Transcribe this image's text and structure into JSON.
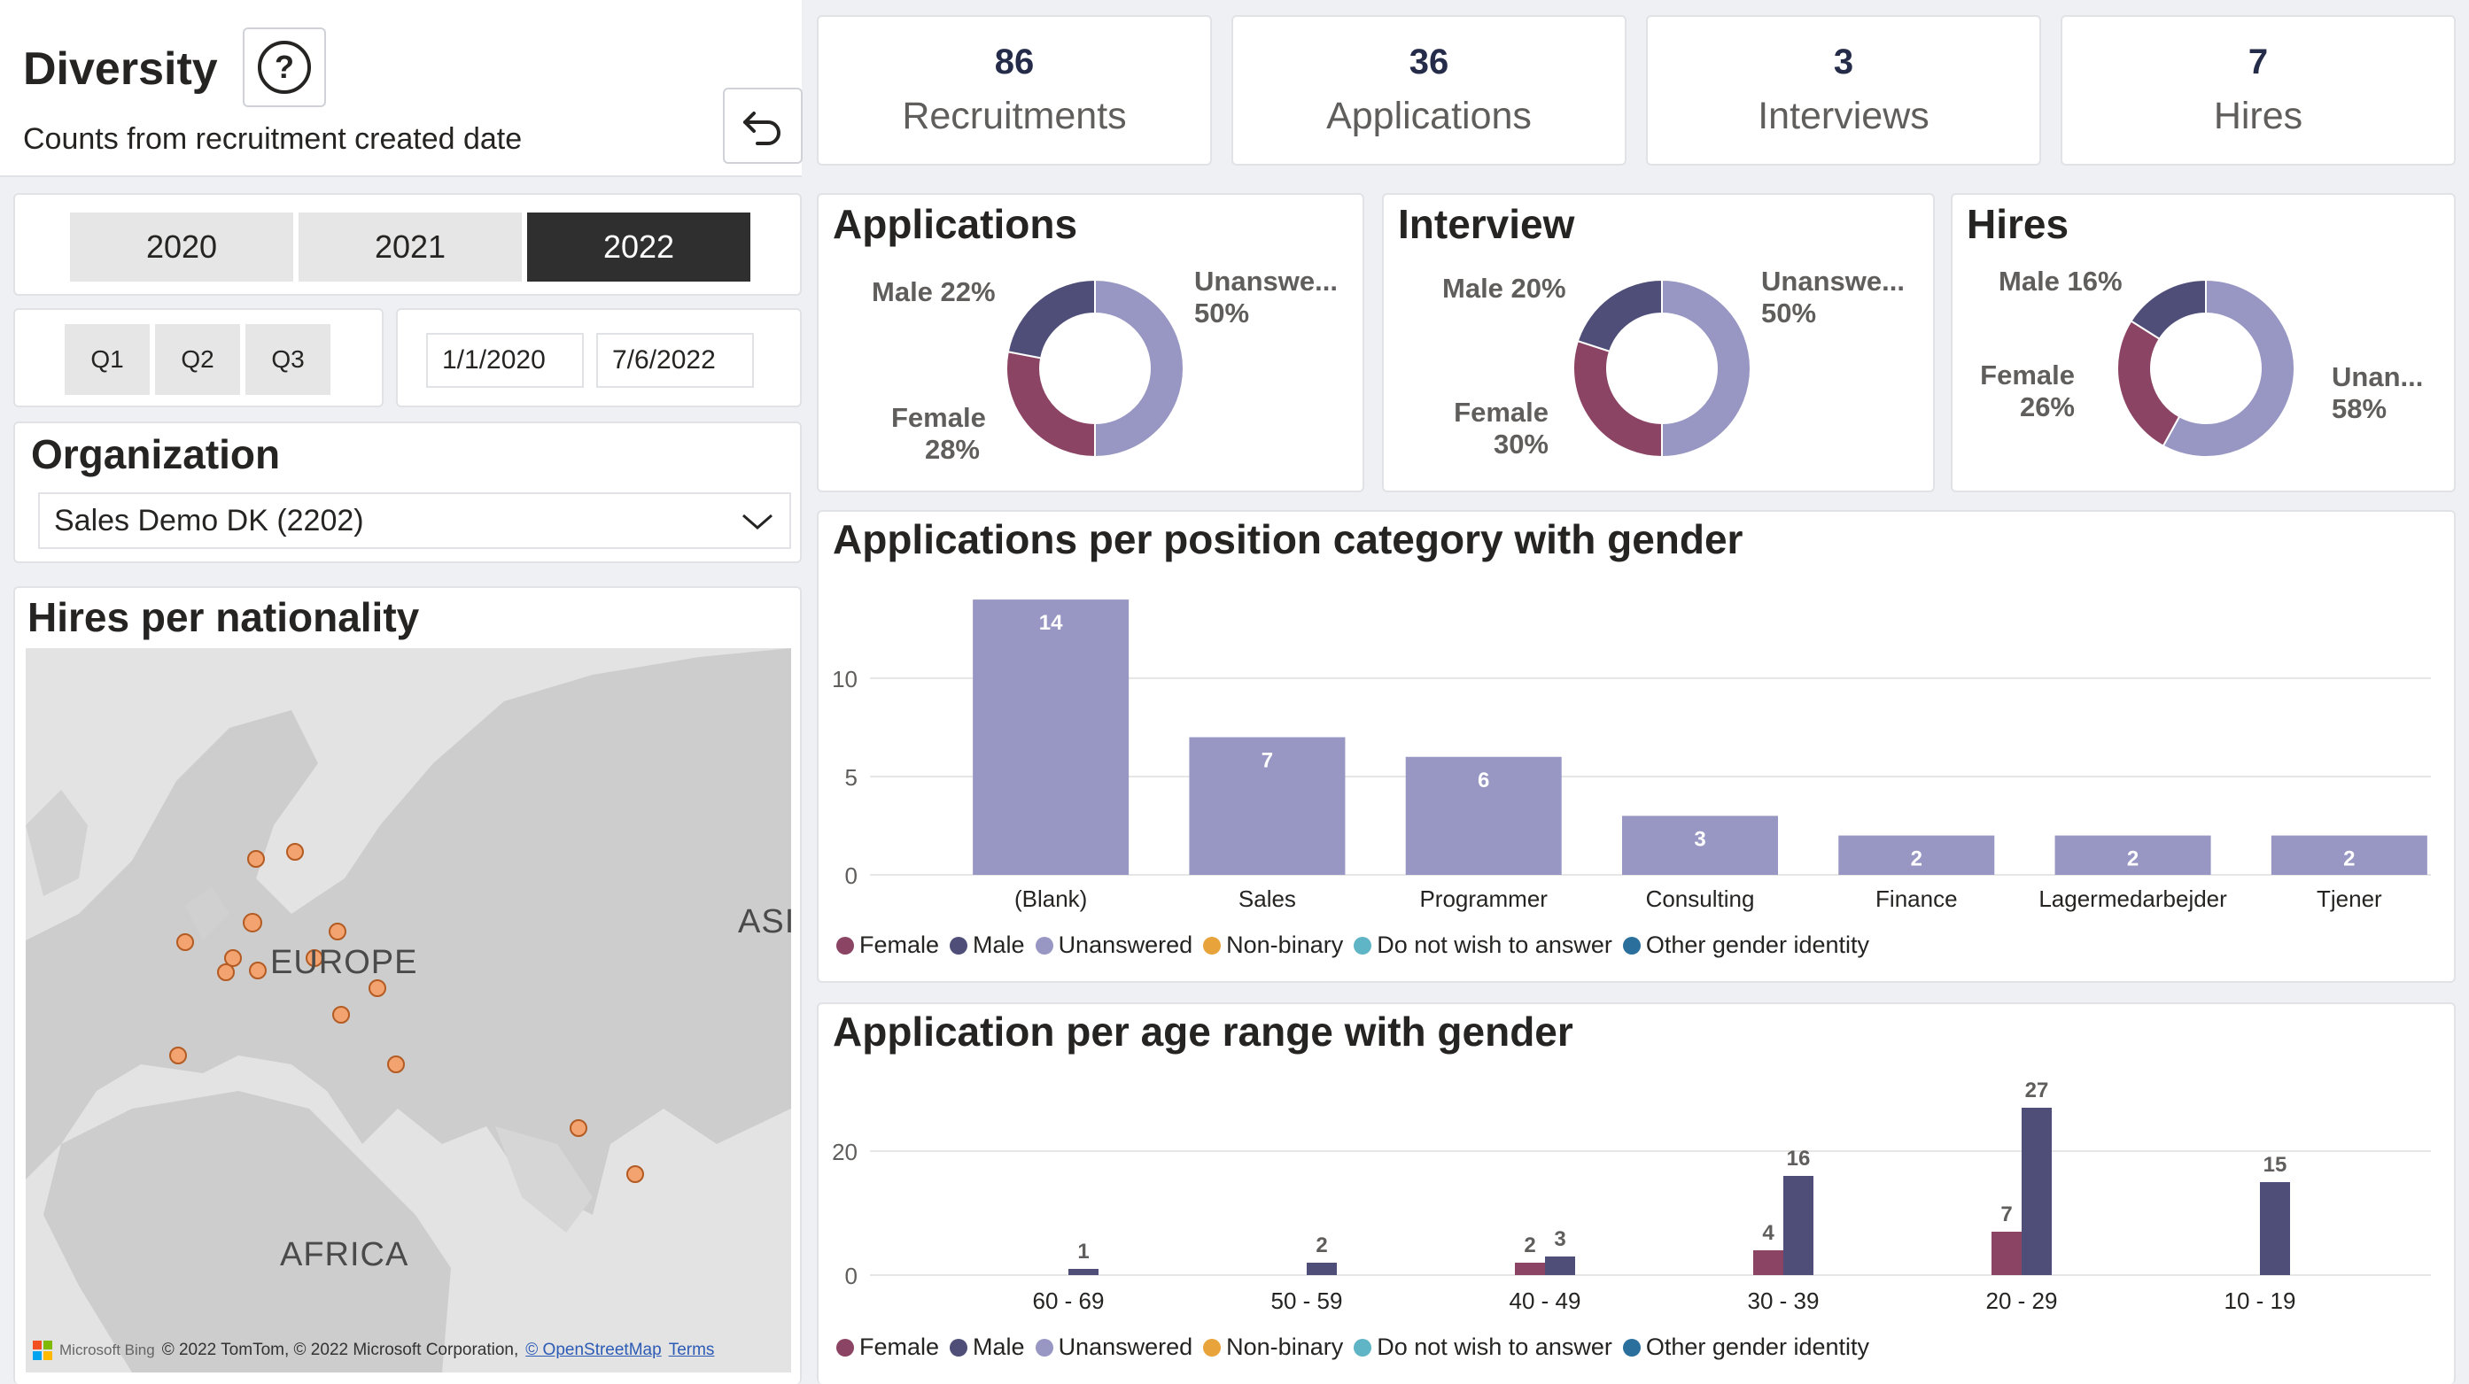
{
  "header": {
    "title": "Diversity",
    "subtitle": "Counts from recruitment created date"
  },
  "kpis": [
    {
      "value": "86",
      "label": "Recruitments"
    },
    {
      "value": "36",
      "label": "Applications"
    },
    {
      "value": "3",
      "label": "Interviews"
    },
    {
      "value": "7",
      "label": "Hires"
    }
  ],
  "years": [
    "2020",
    "2021",
    "2022"
  ],
  "selected_year": "2022",
  "quarters": [
    "Q1",
    "Q2",
    "Q3"
  ],
  "date_range": {
    "start": "1/1/2020",
    "end": "7/6/2022"
  },
  "organization": {
    "title": "Organization",
    "selected": "Sales Demo DK (2202)"
  },
  "map": {
    "title": "Hires per nationality",
    "labels": {
      "europe": "EUROPE",
      "africa": "AFRICA",
      "asia": "ASI"
    },
    "footer": {
      "brand": "Microsoft Bing",
      "copyright": "© 2022 TomTom, © 2022 Microsoft Corporation,",
      "osm": "© OpenStreetMap",
      "terms": "Terms"
    }
  },
  "colors": {
    "female": "#8b4463",
    "male": "#4f4e78",
    "unanswered": "#9896c2",
    "nonbinary": "#e8a33b",
    "donotwish": "#5fb4c5",
    "other": "#2b6f9c"
  },
  "donuts": [
    {
      "title": "Applications",
      "labels": {
        "male": "Male 22%",
        "female_name": "Female",
        "female_pct": "28%",
        "unanswered_name": "Unanswe...",
        "unanswered_pct": "50%"
      },
      "values": {
        "male": 22,
        "female": 28,
        "unanswered": 50
      }
    },
    {
      "title": "Interview",
      "labels": {
        "male": "Male 20%",
        "female_name": "Female",
        "female_pct": "30%",
        "unanswered_name": "Unanswe...",
        "unanswered_pct": "50%"
      },
      "values": {
        "male": 20,
        "female": 30,
        "unanswered": 50
      }
    },
    {
      "title": "Hires",
      "labels": {
        "male": "Male 16%",
        "female_name": "Female",
        "female_pct": "26%",
        "unanswered_name": "Unan...",
        "unanswered_pct": "58%"
      },
      "values": {
        "male": 16,
        "female": 26,
        "unanswered": 58
      }
    }
  ],
  "legend": [
    "Female",
    "Male",
    "Unanswered",
    "Non-binary",
    "Do not wish to answer",
    "Other gender identity"
  ],
  "chart_data": [
    {
      "type": "bar",
      "title": "Applications per position category with gender",
      "categories": [
        "(Blank)",
        "Sales",
        "Programmer",
        "Consulting",
        "Finance",
        "Lagermedarbejder",
        "Tjener"
      ],
      "series": [
        {
          "name": "Unanswered",
          "values": [
            14,
            7,
            6,
            3,
            2,
            2,
            2
          ]
        }
      ],
      "yticks": [
        0,
        5,
        10
      ],
      "ylim": [
        0,
        14.5
      ],
      "legend": [
        "Female",
        "Male",
        "Unanswered",
        "Non-binary",
        "Do not wish to answer",
        "Other gender identity"
      ]
    },
    {
      "type": "bar",
      "title": "Application per age range with gender",
      "categories": [
        "60 - 69",
        "50 - 59",
        "40 - 49",
        "30 - 39",
        "20 - 29",
        "10 - 19"
      ],
      "series": [
        {
          "name": "Female",
          "values": [
            null,
            null,
            2,
            4,
            7,
            null
          ]
        },
        {
          "name": "Male",
          "values": [
            1,
            2,
            3,
            16,
            27,
            15
          ]
        }
      ],
      "yticks": [
        0,
        20
      ],
      "ylim": [
        0,
        30
      ],
      "legend": [
        "Female",
        "Male",
        "Unanswered",
        "Non-binary",
        "Do not wish to answer",
        "Other gender identity"
      ]
    }
  ]
}
